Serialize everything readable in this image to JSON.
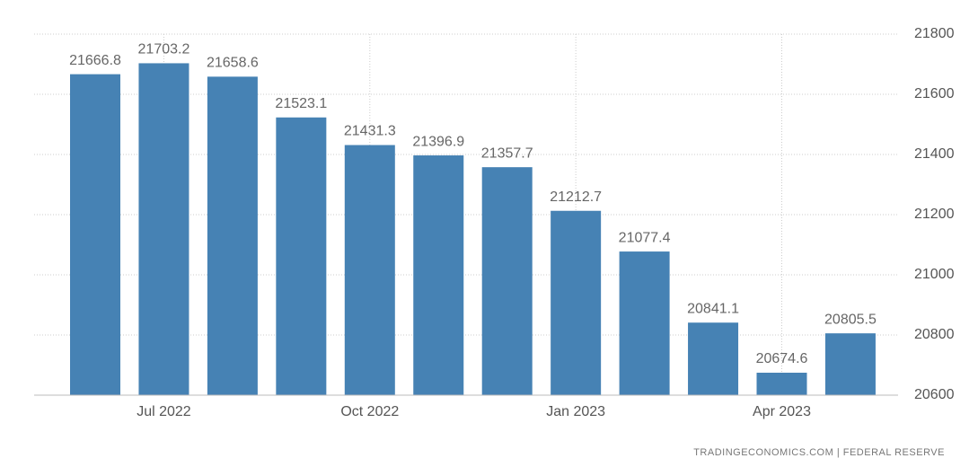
{
  "chart_data": {
    "type": "bar",
    "categories": [
      null,
      "Jul 2022",
      null,
      null,
      "Oct 2022",
      null,
      null,
      "Jan 2023",
      null,
      null,
      "Apr 2023",
      null
    ],
    "values": [
      21666.8,
      21703.2,
      21658.6,
      21523.1,
      21431.3,
      21396.9,
      21357.7,
      21212.7,
      21077.4,
      20841.1,
      20674.6,
      20805.5
    ],
    "color": "#4682b4",
    "ylim": [
      20600,
      21800
    ],
    "yticks": [
      20600,
      20800,
      21000,
      21200,
      21400,
      21600,
      21800
    ],
    "grid": true,
    "source": "TRADINGECONOMICS.COM | FEDERAL RESERVE"
  }
}
